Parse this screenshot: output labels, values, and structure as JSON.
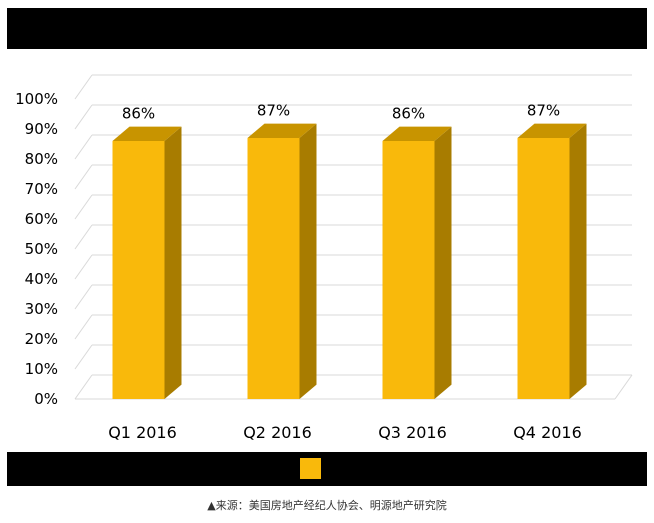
{
  "chart_data": {
    "type": "bar",
    "style": "3d",
    "categories": [
      "Q1 2016",
      "Q2 2016",
      "Q3 2016",
      "Q4 2016"
    ],
    "values": [
      86,
      87,
      86,
      87
    ],
    "data_labels": [
      "86%",
      "87%",
      "86%",
      "87%"
    ],
    "ylim": [
      0,
      100
    ],
    "yticks": [
      0,
      10,
      20,
      30,
      40,
      50,
      60,
      70,
      80,
      90,
      100
    ],
    "ytick_labels": [
      "0%",
      "10%",
      "20%",
      "30%",
      "40%",
      "50%",
      "60%",
      "70%",
      "80%",
      "90%",
      "100%"
    ],
    "grid": true,
    "legend": "bottom"
  },
  "colors": {
    "bar_front": "#F9B90B",
    "bar_side": "#A87C00",
    "bar_top": "#C89400",
    "grid": "#D9D9D9",
    "band": "#000000"
  },
  "source_note": "▲来源：美国房地产经纪人协会、明源地产研究院"
}
